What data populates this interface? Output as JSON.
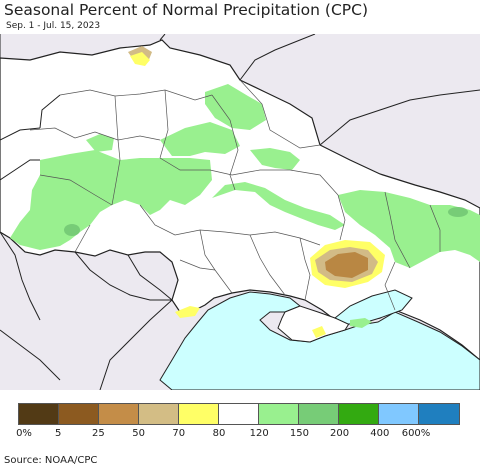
{
  "title": "Seasonal Percent of Normal Precipitation (CPC)",
  "subtitle": "Sep. 1 - Jul. 15, 2023",
  "source": "Source: NOAA/CPC",
  "colors": {
    "land": "#ffffff",
    "outside": "#ece9f0",
    "sea": "#ccffff",
    "border": "#222222",
    "light_green": "#99f08f",
    "brown": "#b98743",
    "tan": "#d2bb86",
    "yellow": "#ffff66"
  },
  "legend": {
    "colors": [
      "#523a15",
      "#8c5a20",
      "#c48d48",
      "#d3bd85",
      "#ffff66",
      "#ffffff",
      "#99f08f",
      "#77cc77",
      "#33aa11",
      "#80c8ff",
      "#1f7fbf"
    ],
    "labels": [
      "0%",
      "5",
      "25",
      "50",
      "70",
      "80",
      "120",
      "150",
      "200",
      "400",
      "600%"
    ]
  }
}
